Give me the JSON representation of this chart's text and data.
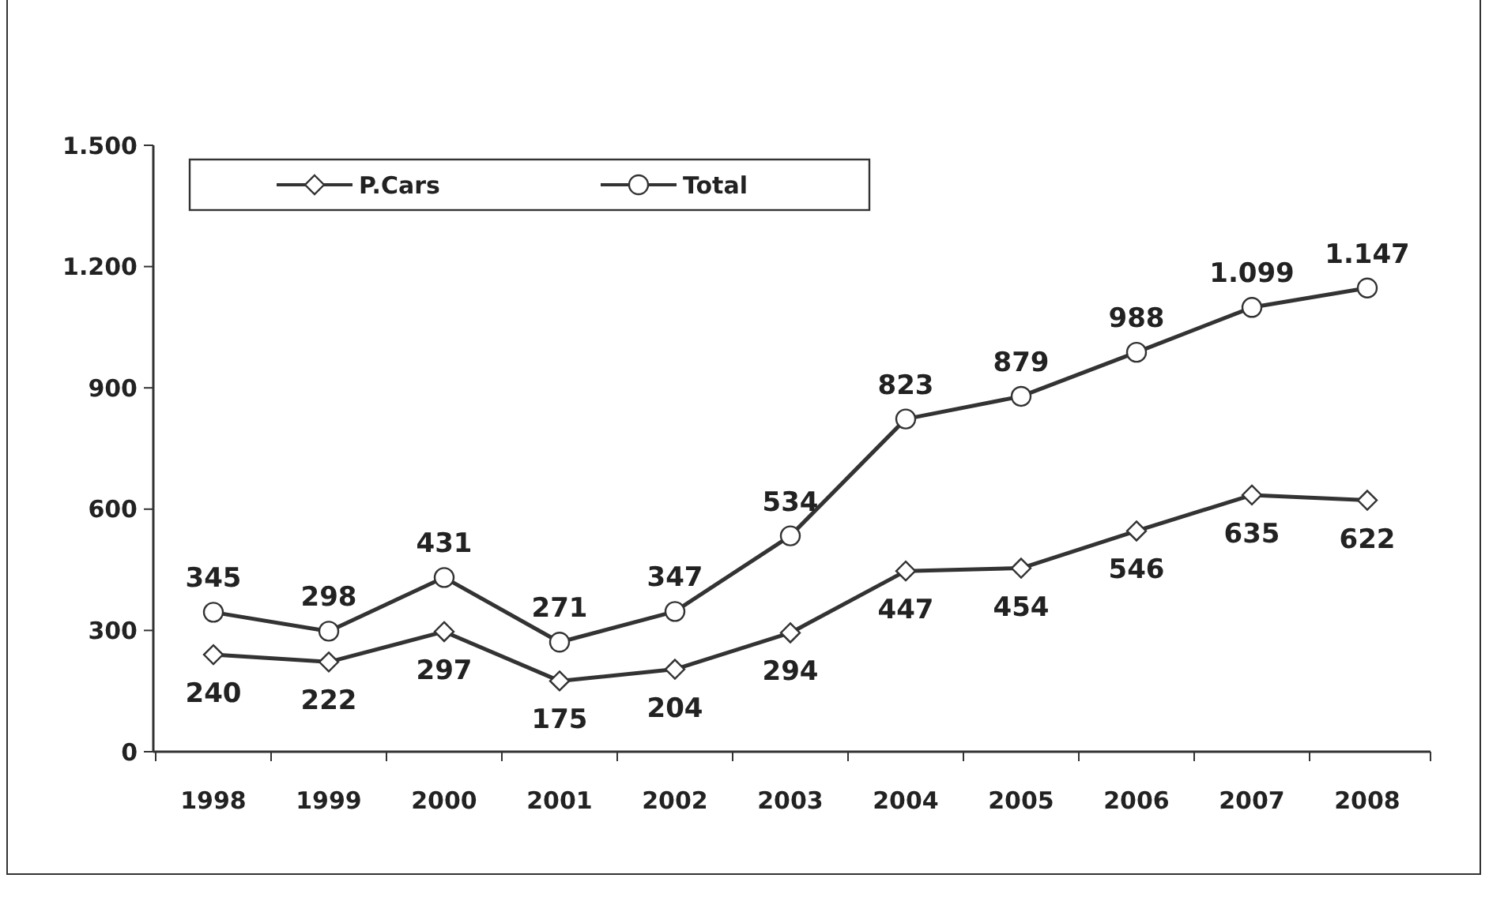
{
  "chart_data": {
    "type": "line",
    "categories": [
      "1998",
      "1999",
      "2000",
      "2001",
      "2002",
      "2003",
      "2004",
      "2005",
      "2006",
      "2007",
      "2008"
    ],
    "series": [
      {
        "name": "P.Cars",
        "color": "#333333",
        "marker": "diamond",
        "values": [
          240,
          222,
          297,
          175,
          204,
          294,
          447,
          454,
          546,
          635,
          622
        ],
        "value_labels": [
          "240",
          "222",
          "297",
          "175",
          "204",
          "294",
          "447",
          "454",
          "546",
          "635",
          "622"
        ]
      },
      {
        "name": "Total",
        "color": "#333333",
        "marker": "circle",
        "values": [
          345,
          298,
          431,
          271,
          347,
          534,
          823,
          879,
          988,
          1099,
          1147
        ],
        "value_labels": [
          "345",
          "298",
          "431",
          "271",
          "347",
          "534",
          "823",
          "879",
          "988",
          "1.099",
          "1.147"
        ]
      }
    ],
    "ylim": [
      0,
      1500
    ],
    "yticks": [
      0,
      300,
      600,
      900,
      {
        "value": 1200,
        "label": "1.200"
      },
      {
        "value": 1500,
        "label": "1.500"
      }
    ],
    "legend": "top left",
    "grid": false,
    "line_style": "solid"
  }
}
